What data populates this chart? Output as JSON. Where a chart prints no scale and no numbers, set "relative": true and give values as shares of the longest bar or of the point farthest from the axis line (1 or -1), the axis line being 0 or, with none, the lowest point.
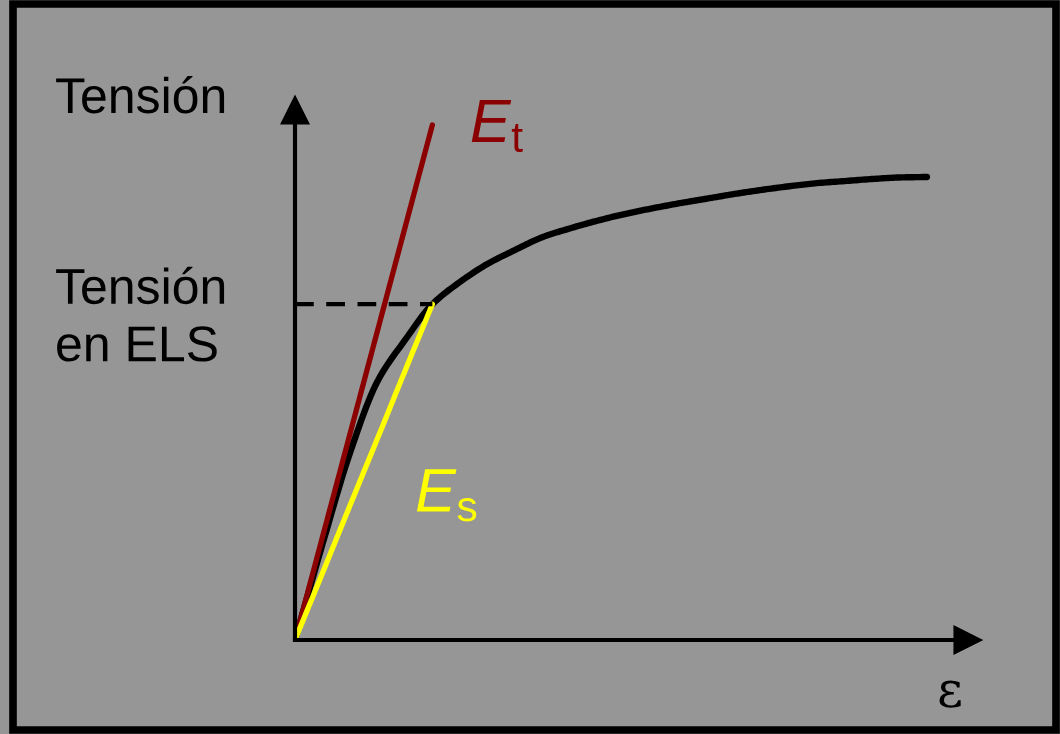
{
  "chart_data": {
    "type": "line",
    "relative": true,
    "ylabel": "Tensión",
    "xlabel": "ε",
    "categories": [
      null,
      null,
      null,
      null,
      null,
      null,
      null,
      null,
      null,
      null,
      null,
      null,
      null,
      null,
      null,
      null,
      null,
      null,
      null,
      null,
      null,
      null,
      null,
      null
    ],
    "series": [
      {
        "color": "#000000",
        "values": [
          0,
          0.186,
          0.363,
          0.502,
          0.582,
          0.652,
          0.695,
          0.73,
          0.757,
          0.782,
          0.799,
          0.814,
          0.827,
          0.838,
          0.848,
          0.857,
          0.866,
          0.874,
          0.881,
          0.887,
          0.891,
          0.895,
          0.898,
          0.899
        ]
      },
      {
        "name": "E$_{t}$",
        "color": "#8b0000",
        "values": [
          0,
          0.2,
          0.4,
          0.6,
          0.8,
          1.0,
          null,
          null,
          null,
          null,
          null,
          null,
          null,
          null,
          null,
          null,
          null,
          null,
          null,
          null,
          null,
          null,
          null,
          null
        ]
      },
      {
        "name": "E$_{s}$",
        "color": "#ffff00",
        "values": [
          0,
          0.13,
          0.261,
          0.391,
          0.522,
          0.652,
          null,
          null,
          null,
          null,
          null,
          null,
          null,
          null,
          null,
          null,
          null,
          null,
          null,
          null,
          null,
          null,
          null,
          null
        ]
      }
    ],
    "ref_lines": [
      {
        "axis": "y",
        "value": 0.652,
        "label": "Tensión\nen ELS",
        "color": "#000000",
        "line_style": "dashed"
      }
    ]
  }
}
